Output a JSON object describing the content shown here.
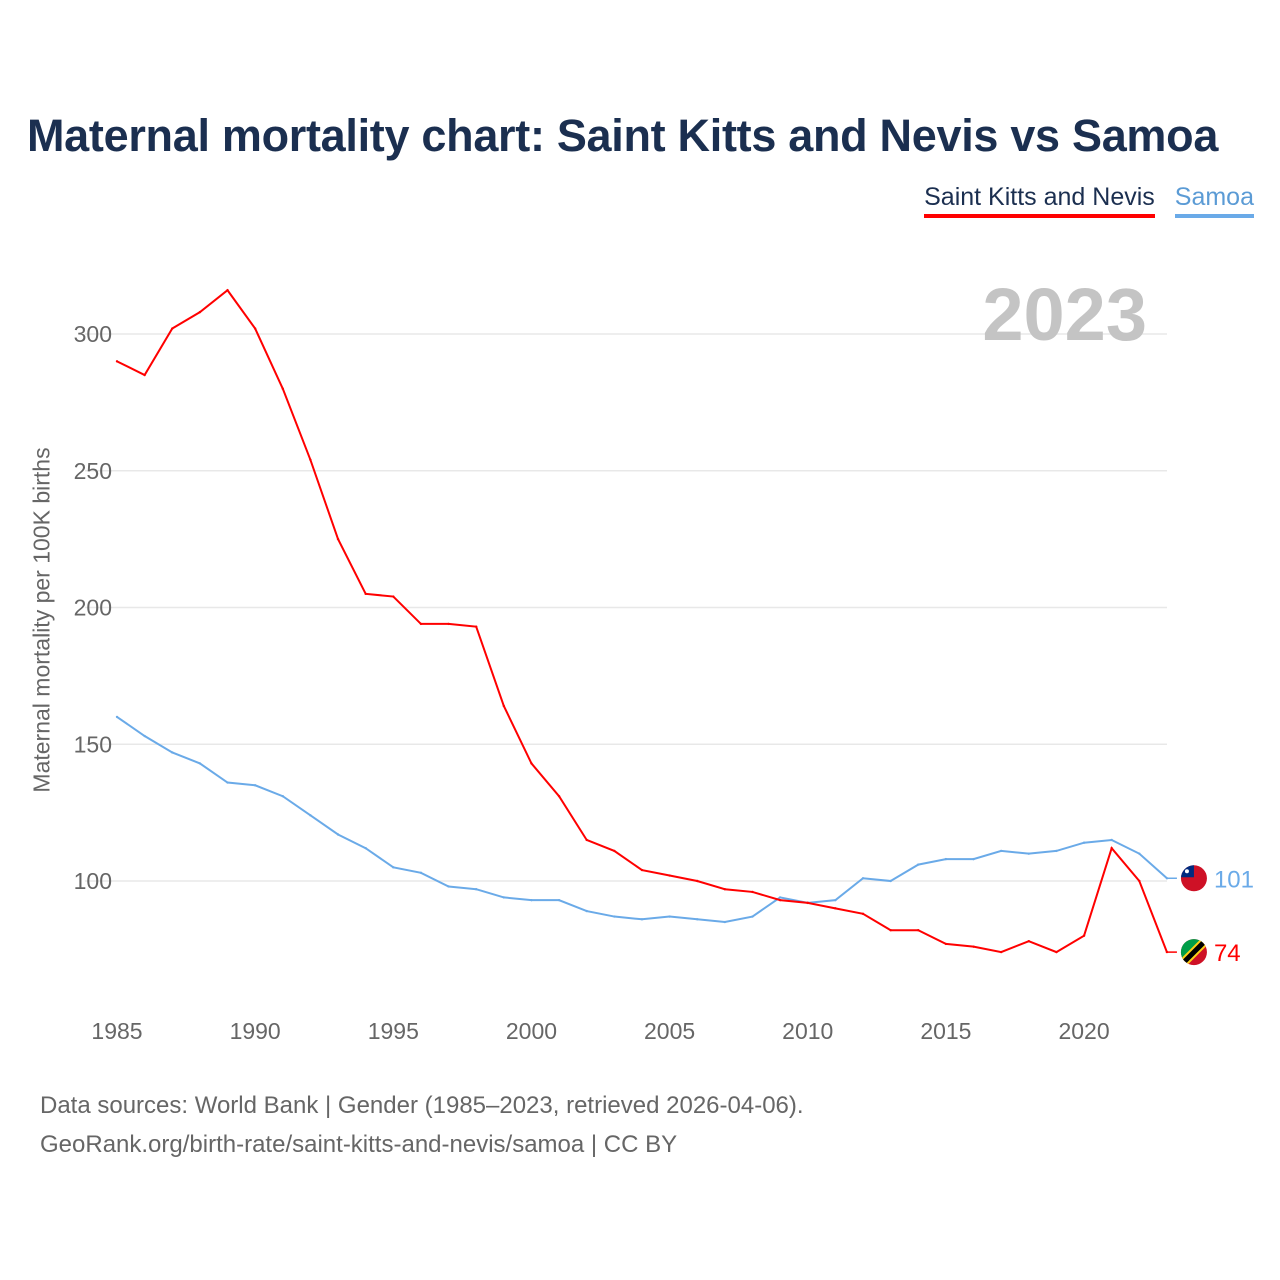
{
  "chart_data": {
    "type": "line",
    "title": "Maternal mortality chart: Saint Kitts and Nevis vs Samoa",
    "xlabel": "",
    "ylabel": "Maternal mortality per 100K births",
    "current_year": "2023",
    "x": [
      1985,
      1986,
      1987,
      1988,
      1989,
      1990,
      1991,
      1992,
      1993,
      1994,
      1995,
      1996,
      1997,
      1998,
      1999,
      2000,
      2001,
      2002,
      2003,
      2004,
      2005,
      2006,
      2007,
      2008,
      2009,
      2010,
      2011,
      2012,
      2013,
      2014,
      2015,
      2016,
      2017,
      2018,
      2019,
      2020,
      2021,
      2022,
      2023
    ],
    "xticks": [
      "1985",
      "1990",
      "1995",
      "2000",
      "2005",
      "2010",
      "2015",
      "2020"
    ],
    "yticks": [
      "100",
      "150",
      "200",
      "250",
      "300"
    ],
    "xlim": [
      1985,
      2023
    ],
    "ylim": [
      53,
      320
    ],
    "grid": true,
    "legend_placement": "top-right",
    "series": [
      {
        "name": "Saint Kitts and Nevis",
        "color": "#ff0000",
        "end_label": "74",
        "values": [
          290,
          285,
          302,
          308,
          316,
          302,
          280,
          254,
          225,
          205,
          204,
          194,
          194,
          193,
          164,
          143,
          131,
          115,
          111,
          104,
          102,
          100,
          97,
          96,
          93,
          92,
          90,
          88,
          82,
          82,
          77,
          76,
          74,
          78,
          74,
          80,
          112,
          100,
          74
        ]
      },
      {
        "name": "Samoa",
        "color": "#6aaae8",
        "end_label": "101",
        "values": [
          160,
          153,
          147,
          143,
          136,
          135,
          131,
          124,
          117,
          112,
          105,
          103,
          98,
          97,
          94,
          93,
          93,
          89,
          87,
          86,
          87,
          86,
          85,
          87,
          94,
          92,
          93,
          101,
          100,
          106,
          108,
          108,
          111,
          110,
          111,
          114,
          115,
          110,
          101
        ]
      }
    ]
  },
  "footer": {
    "line1": "Data sources: World Bank | Gender (1985–2023, retrieved 2026-04-06).",
    "line2": "GeoRank.org/birth-rate/saint-kitts-and-nevis/samoa | CC BY"
  }
}
